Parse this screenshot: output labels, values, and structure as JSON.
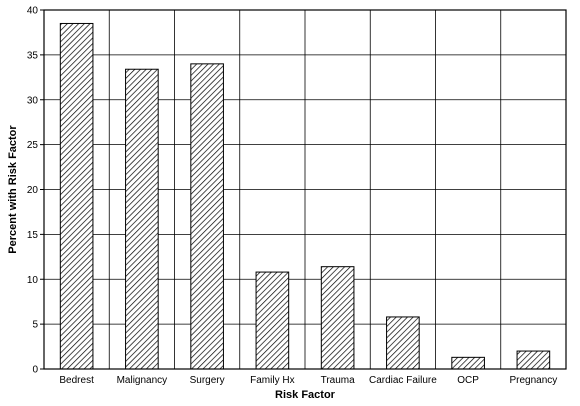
{
  "chart_data": {
    "type": "bar",
    "categories": [
      "Bedrest",
      "Malignancy",
      "Surgery",
      "Family Hx",
      "Trauma",
      "Cardiac Failure",
      "OCP",
      "Pregnancy"
    ],
    "values": [
      38.5,
      33.4,
      34.0,
      10.8,
      11.4,
      5.8,
      1.3,
      2.0
    ],
    "xlabel": "Risk Factor",
    "ylabel": "Percent with Risk Factor",
    "ylim": [
      0,
      40
    ],
    "yticks": [
      0,
      5,
      10,
      15,
      20,
      25,
      30,
      35,
      40
    ],
    "grid": true,
    "bar_fill": "hatched"
  }
}
